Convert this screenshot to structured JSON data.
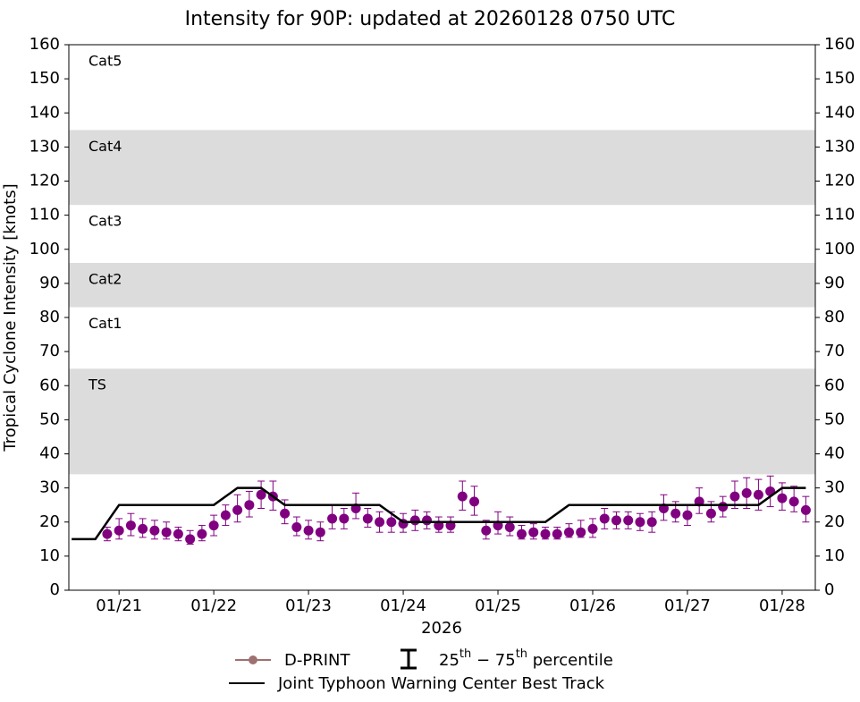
{
  "chart_data": {
    "type": "line",
    "title": "Intensity for 90P: updated at 20260128 0750 UTC",
    "ylabel": "Tropical Cyclone Intensity [knots]",
    "xlabel": "2026",
    "xlim": [
      20.47,
      28.35
    ],
    "xticks": [
      {
        "value": 21,
        "label": "01/21"
      },
      {
        "value": 22,
        "label": "01/22"
      },
      {
        "value": 23,
        "label": "01/23"
      },
      {
        "value": 24,
        "label": "01/24"
      },
      {
        "value": 25,
        "label": "01/25"
      },
      {
        "value": 26,
        "label": "01/26"
      },
      {
        "value": 27,
        "label": "01/27"
      },
      {
        "value": 28,
        "label": "01/28"
      }
    ],
    "ylim": [
      0,
      160
    ],
    "yticks": [
      0,
      10,
      20,
      30,
      40,
      50,
      60,
      70,
      80,
      90,
      100,
      110,
      120,
      130,
      140,
      150,
      160
    ],
    "bands": [
      {
        "name": "TS",
        "range": [
          34,
          65
        ],
        "color": "#dcdcdc"
      },
      {
        "name": "Cat1",
        "range": [
          65,
          83
        ],
        "color": "#ffffff"
      },
      {
        "name": "Cat2",
        "range": [
          83,
          96
        ],
        "color": "#dcdcdc"
      },
      {
        "name": "Cat3",
        "range": [
          96,
          113
        ],
        "color": "#ffffff"
      },
      {
        "name": "Cat4",
        "range": [
          113,
          135
        ],
        "color": "#dcdcdc"
      },
      {
        "name": "Cat5",
        "range": [
          135,
          160
        ],
        "color": "#ffffff"
      }
    ],
    "percentile_label": [
      {
        "text": "25"
      },
      {
        "text": "th",
        "sup": true
      },
      {
        "text": " − 75"
      },
      {
        "text": "th",
        "sup": true
      },
      {
        "text": " percentile"
      }
    ],
    "series": [
      {
        "name": "D-PRINT",
        "style": "markers",
        "color": "#800080",
        "legend_color": "#9e7170",
        "x": [
          20.875,
          21.0,
          21.125,
          21.25,
          21.375,
          21.5,
          21.625,
          21.75,
          21.875,
          22.0,
          22.125,
          22.25,
          22.375,
          22.5,
          22.625,
          22.75,
          22.875,
          23.0,
          23.125,
          23.25,
          23.375,
          23.5,
          23.625,
          23.75,
          23.875,
          24.0,
          24.125,
          24.25,
          24.375,
          24.5,
          24.625,
          24.75,
          24.875,
          25.0,
          25.125,
          25.25,
          25.375,
          25.5,
          25.625,
          25.75,
          25.875,
          26.0,
          26.125,
          26.25,
          26.375,
          26.5,
          26.625,
          26.75,
          26.875,
          27.0,
          27.125,
          27.25,
          27.375,
          27.5,
          27.625,
          27.75,
          27.875,
          28.0,
          28.125,
          28.25
        ],
        "values": [
          16.5,
          17.5,
          19,
          18,
          17.5,
          17,
          16.5,
          15,
          16.5,
          19,
          22,
          23.5,
          25,
          28,
          27.5,
          22.5,
          18.5,
          17.5,
          17,
          21,
          21,
          24,
          21,
          20,
          20,
          19.5,
          20.5,
          20.5,
          19,
          19,
          27.5,
          26,
          17.5,
          19,
          18.5,
          16.5,
          17,
          16.5,
          16.5,
          17,
          17,
          18,
          21,
          20.5,
          20.5,
          20,
          20,
          24,
          22.5,
          22,
          26,
          22.5,
          24.5,
          27.5,
          28.5,
          28,
          29,
          27,
          26,
          23.5
        ],
        "low": [
          14.5,
          15,
          16,
          15.5,
          15,
          15,
          14.5,
          13.5,
          14.5,
          16,
          19,
          20,
          21.5,
          24,
          23.5,
          19.5,
          16,
          15,
          14.5,
          18,
          18,
          21,
          18.5,
          17,
          17,
          17,
          17.5,
          18,
          17,
          17,
          23.5,
          22,
          15,
          16.5,
          16,
          15,
          15,
          15,
          15,
          15.5,
          15.5,
          15.5,
          18,
          18,
          18,
          17.5,
          17,
          20.5,
          20,
          19,
          22.5,
          20,
          21.5,
          24,
          24,
          23.5,
          24.5,
          23.5,
          23,
          20
        ],
        "high": [
          18.5,
          21,
          22.5,
          21,
          20.5,
          20,
          18.5,
          17.5,
          19,
          22,
          25,
          28,
          29,
          32,
          32,
          26.5,
          21.5,
          20.5,
          20,
          25,
          24,
          28.5,
          24,
          23,
          23,
          22.5,
          23.5,
          23,
          21.5,
          21.5,
          32,
          30.5,
          20.5,
          23,
          21.5,
          19,
          19.5,
          18.5,
          18.5,
          19.5,
          20.5,
          21,
          24,
          23,
          23,
          22.5,
          23,
          28,
          26,
          25,
          30,
          26,
          27.5,
          32,
          33,
          32.5,
          33.5,
          31.5,
          30.5,
          27.5
        ]
      },
      {
        "name": "Joint Typhoon Warning Center Best Track",
        "style": "line",
        "color": "#000000",
        "x": [
          20.5,
          20.75,
          21.0,
          21.25,
          21.5,
          21.75,
          22.0,
          22.25,
          22.5,
          22.75,
          23.0,
          23.25,
          23.5,
          23.75,
          24.0,
          24.25,
          24.5,
          24.75,
          25.0,
          25.25,
          25.5,
          25.75,
          26.0,
          26.25,
          26.5,
          26.75,
          27.0,
          27.25,
          27.5,
          27.75,
          28.0,
          28.25
        ],
        "values": [
          15,
          15,
          25,
          25,
          25,
          25,
          25,
          30,
          30,
          25,
          25,
          25,
          25,
          25,
          20,
          20,
          20,
          20,
          20,
          20,
          20,
          25,
          25,
          25,
          25,
          25,
          25,
          25,
          25,
          25,
          30,
          30
        ]
      }
    ]
  }
}
